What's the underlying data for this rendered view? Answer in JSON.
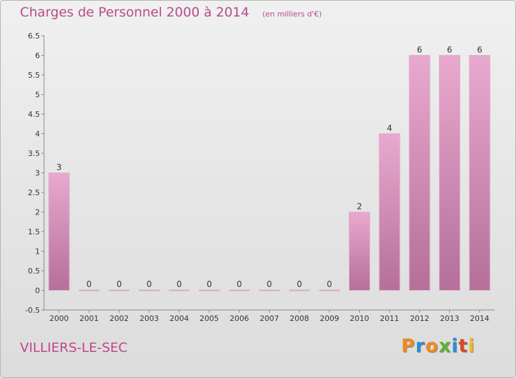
{
  "header": {
    "title": "Charges de Personnel 2000 à 2014",
    "unit": "(en milliers d'€)"
  },
  "footer": {
    "commune": "VILLIERS-LE-SEC",
    "brand": {
      "text": "Proxiti",
      "letter_colors": [
        "#f08a1e",
        "#2a8fd6",
        "#f08a1e",
        "#5cb030",
        "#2a8fd6",
        "#d64a2a",
        "#f0b81e"
      ]
    }
  },
  "colors": {
    "bar_top": "#e9a9cf",
    "bar_bottom": "#b56f99",
    "zero_bar": "#d8a9c4",
    "title": "#b64b8e"
  },
  "chart_data": {
    "type": "bar",
    "title": "Charges de Personnel 2000 à 2014",
    "subtitle": "(en milliers d'€)",
    "categories": [
      "2000",
      "2001",
      "2002",
      "2003",
      "2004",
      "2005",
      "2006",
      "2007",
      "2008",
      "2009",
      "2010",
      "2011",
      "2012",
      "2013",
      "2014"
    ],
    "values": [
      3,
      0,
      0,
      0,
      0,
      0,
      0,
      0,
      0,
      0,
      2,
      4,
      6,
      6,
      6
    ],
    "value_labels": [
      "3",
      "0",
      "0",
      "0",
      "0",
      "0",
      "0",
      "0",
      "0",
      "0",
      "2",
      "4",
      "6",
      "6",
      "6"
    ],
    "ylim": [
      -0.5,
      6.5
    ],
    "yticks": [
      -0.5,
      0,
      0.5,
      1,
      1.5,
      2,
      2.5,
      3,
      3.5,
      4,
      4.5,
      5,
      5.5,
      6,
      6.5
    ],
    "ytick_labels": [
      "-0.5",
      "0",
      "0.5",
      "1",
      "1.5",
      "2",
      "2.5",
      "3",
      "3.5",
      "4",
      "4.5",
      "5",
      "5.5",
      "6",
      "6.5"
    ],
    "grid": false,
    "legend": "none"
  }
}
